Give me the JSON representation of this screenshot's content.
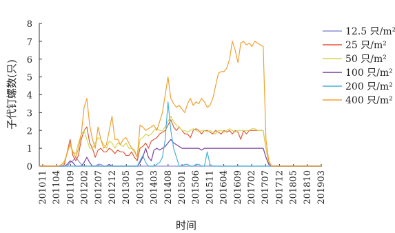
{
  "chart_data": {
    "type": "line",
    "xlabel": "时间",
    "ylabel": "子代钉螺数(只)",
    "ylim": [
      0,
      8
    ],
    "yticks": [
      0,
      1,
      2,
      3,
      4,
      5,
      6,
      7,
      8
    ],
    "legend_position": "right",
    "x_labels": [
      "201011",
      "201104",
      "201109",
      "201202",
      "201207",
      "201212",
      "201305",
      "201310",
      "201403",
      "201408",
      "201501",
      "201506",
      "201511",
      "201604",
      "201609",
      "201702",
      "201707",
      "201712",
      "201805",
      "201810",
      "201903"
    ],
    "series": [
      {
        "name": "12.5 只/m²",
        "color": "#8c8fd9",
        "values": [
          0,
          0,
          0,
          0,
          0,
          0,
          0,
          0,
          0,
          0,
          0,
          0.2,
          0.3,
          0.5,
          0.3,
          0.1,
          0,
          0,
          0,
          0,
          0,
          0.1,
          0.1,
          0,
          0,
          0,
          0,
          0,
          0,
          0,
          0,
          0,
          0,
          0,
          0,
          0,
          0,
          0,
          0,
          0,
          0,
          0,
          0,
          0,
          0,
          0,
          0,
          0,
          0,
          0,
          0,
          0,
          0,
          0,
          0,
          0,
          0,
          0,
          0,
          0,
          0,
          0,
          0,
          0,
          0,
          0,
          0,
          0,
          0,
          0,
          0,
          0,
          0,
          0,
          0,
          0,
          0,
          0,
          0,
          0,
          0,
          0,
          0,
          0,
          0,
          0,
          0,
          0,
          0,
          0,
          0,
          0,
          0,
          0,
          0,
          0,
          0,
          0,
          0,
          0,
          0,
          0
        ]
      },
      {
        "name": "25 只/m²",
        "color": "#e0563a",
        "values": [
          0,
          0,
          0,
          0,
          0,
          0,
          0,
          0,
          0,
          0.1,
          0.8,
          1.5,
          0.6,
          0.3,
          0.6,
          1.5,
          2.0,
          2.2,
          1.3,
          1.0,
          0.5,
          0.9,
          1.0,
          0.8,
          0.8,
          1.0,
          0.9,
          0.7,
          0.9,
          0.8,
          0.8,
          0.6,
          0.6,
          0.8,
          0.5,
          0.3,
          1.0,
          1.1,
          1.3,
          1.0,
          1.4,
          1.5,
          1.6,
          1.8,
          1.9,
          2.0,
          2.3,
          2.6,
          2.2,
          2.0,
          2.2,
          2.0,
          1.8,
          1.8,
          1.6,
          2.0,
          2.1,
          2.0,
          1.8,
          2.0,
          2.0,
          1.9,
          1.8,
          2.0,
          1.9,
          1.8,
          2.0,
          1.9,
          2.0,
          1.8,
          2.0,
          1.9,
          1.5,
          2.0,
          1.8,
          2.0,
          2.0,
          2.0,
          2.0,
          2.0,
          2.0,
          1.0,
          0.2,
          0,
          0,
          0,
          0,
          0,
          0,
          0,
          0,
          0,
          0,
          0,
          0,
          0,
          0,
          0,
          0,
          0,
          0,
          0
        ]
      },
      {
        "name": "50 只/m²",
        "color": "#d6d64a",
        "values": [
          0,
          0,
          0,
          0,
          0,
          0,
          0,
          0,
          0.1,
          0.3,
          0.7,
          1.3,
          0.8,
          0.7,
          1.3,
          1.8,
          2.0,
          1.5,
          1.0,
          1.0,
          1.3,
          1.6,
          1.5,
          1.2,
          1.0,
          1.4,
          1.3,
          1.0,
          1.3,
          1.2,
          1.1,
          1.3,
          1.0,
          1.0,
          0.8,
          0.5,
          1.5,
          1.6,
          1.8,
          1.7,
          1.8,
          2.0,
          2.1,
          2.0,
          2.0,
          2.2,
          2.5,
          2.8,
          2.5,
          2.3,
          2.2,
          2.0,
          2.0,
          1.9,
          2.0,
          2.1,
          2.0,
          1.9,
          2.0,
          2.0,
          1.9,
          2.0,
          1.9,
          1.8,
          2.0,
          2.0,
          1.9,
          2.0,
          2.1,
          2.0,
          1.9,
          2.0,
          2.0,
          2.0,
          2.0,
          2.0,
          2.1,
          2.1,
          2.0,
          2.0,
          2.0,
          1.0,
          0.2,
          0,
          0,
          0,
          0,
          0,
          0,
          0,
          0,
          0,
          0,
          0,
          0,
          0,
          0,
          0,
          0,
          0,
          0,
          0
        ]
      },
      {
        "name": "100 只/m²",
        "color": "#7b3f9e",
        "values": [
          0,
          0,
          0,
          0,
          0,
          0,
          0,
          0,
          0,
          0,
          0.1,
          0.3,
          0.2,
          0,
          0,
          0,
          0.2,
          0.5,
          0.2,
          0,
          0,
          0,
          0,
          0,
          0,
          0.1,
          0,
          0,
          0,
          0,
          0,
          0,
          0,
          0,
          0,
          0,
          0.2,
          0.5,
          1.0,
          0.5,
          0.3,
          0.9,
          1.0,
          0.9,
          1.0,
          1.1,
          1.3,
          1.5,
          1.3,
          1.2,
          1.1,
          1.0,
          1.0,
          1.0,
          1.0,
          1.0,
          1.0,
          1.0,
          0.9,
          1.0,
          1.0,
          1.0,
          1.0,
          1.0,
          1.0,
          1.0,
          1.0,
          1.0,
          1.0,
          1.0,
          1.0,
          1.0,
          1.0,
          1.0,
          1.0,
          1.0,
          1.0,
          1.0,
          1.0,
          1.0,
          1.0,
          0.5,
          0.1,
          0,
          0,
          0,
          0,
          0,
          0,
          0,
          0,
          0,
          0,
          0,
          0,
          0,
          0,
          0,
          0,
          0,
          0,
          0
        ]
      },
      {
        "name": "200 只/m²",
        "color": "#4ab0d9",
        "values": [
          0,
          0,
          0,
          0,
          0,
          0,
          0,
          0,
          0,
          0,
          0,
          0,
          0,
          0,
          0,
          0,
          0,
          0,
          0,
          0,
          0,
          0,
          0,
          0,
          0,
          0,
          0,
          0,
          0,
          0,
          0,
          0,
          0,
          0,
          0,
          0,
          0.3,
          0.6,
          0.2,
          0,
          0,
          0,
          0.1,
          0.2,
          0.5,
          1.5,
          3.6,
          2.0,
          1.0,
          0.5,
          0,
          0,
          0.1,
          0.1,
          0,
          0,
          0.1,
          0.1,
          0,
          0,
          0.8,
          0.1,
          0,
          0,
          0,
          0,
          0,
          0,
          0,
          0,
          0,
          0,
          0,
          0,
          0,
          0,
          0,
          0,
          0,
          0,
          0,
          0,
          0,
          0,
          0,
          0,
          0,
          0,
          0,
          0,
          0,
          0,
          0,
          0,
          0,
          0,
          0,
          0,
          0,
          0,
          0,
          0
        ]
      },
      {
        "name": "400 只/m²",
        "color": "#f0a030",
        "values": [
          0,
          0,
          0,
          0,
          0,
          0,
          0,
          0,
          0.1,
          0.2,
          0.8,
          1.2,
          0.8,
          0.5,
          1.0,
          1.8,
          3.3,
          3.8,
          2.3,
          1.5,
          1.0,
          2.2,
          1.5,
          1.0,
          1.2,
          2.0,
          2.8,
          1.5,
          1.5,
          1.2,
          1.5,
          1.6,
          1.3,
          1.0,
          0.9,
          0.5,
          2.3,
          2.2,
          2.0,
          2.1,
          2.2,
          2.3,
          2.0,
          2.5,
          3.0,
          4.0,
          5.0,
          3.8,
          3.5,
          3.3,
          3.4,
          3.2,
          3.0,
          3.5,
          3.8,
          3.4,
          3.6,
          3.5,
          3.8,
          3.6,
          3.3,
          3.4,
          3.8,
          4.5,
          5.2,
          5.3,
          5.3,
          5.5,
          6.0,
          7.0,
          6.5,
          5.8,
          6.9,
          7.0,
          6.8,
          6.9,
          6.7,
          7.0,
          6.9,
          6.8,
          6.7,
          1.5,
          0.3,
          0,
          0,
          0,
          0,
          0,
          0,
          0,
          0,
          0,
          0,
          0,
          0,
          0,
          0,
          0,
          0,
          0,
          0,
          0
        ]
      }
    ]
  }
}
